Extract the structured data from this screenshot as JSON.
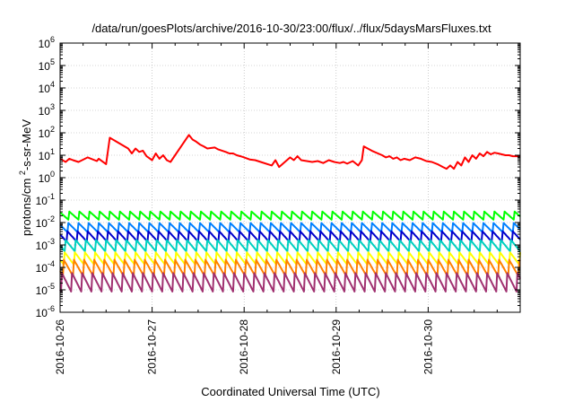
{
  "chart_data": {
    "type": "line",
    "title": "/data/run/goesPlots/archive/2016-10-30/23:00/flux/../flux/5daysMarsFluxes.txt",
    "xlabel": "Coordinated Universal Time (UTC)",
    "ylabel": "protons/cm2-s-sr-MeV",
    "yscale": "log",
    "ylim": [
      1e-06,
      1000000.0
    ],
    "xlim": [
      "2016-10-26",
      "2016-10-31"
    ],
    "grid": true,
    "legend": "none",
    "x_ticks": [
      "2016-10-26",
      "2016-10-27",
      "2016-10-28",
      "2016-10-29",
      "2016-10-30"
    ],
    "y_ticks": [
      {
        "base": "10",
        "exp": "6"
      },
      {
        "base": "10",
        "exp": "5"
      },
      {
        "base": "10",
        "exp": "4"
      },
      {
        "base": "10",
        "exp": "3"
      },
      {
        "base": "10",
        "exp": "2"
      },
      {
        "base": "10",
        "exp": "1"
      },
      {
        "base": "10",
        "exp": "0"
      },
      {
        "base": "10",
        "exp": "-1"
      },
      {
        "base": "10",
        "exp": "-2"
      },
      {
        "base": "10",
        "exp": "-3"
      },
      {
        "base": "10",
        "exp": "-4"
      },
      {
        "base": "10",
        "exp": "-5"
      },
      {
        "base": "10",
        "exp": "-6"
      }
    ],
    "series": [
      {
        "color": "#ff0000",
        "x": [
          0,
          0.06,
          0.1,
          0.14,
          0.2,
          0.3,
          0.4,
          0.42,
          0.5,
          0.54,
          0.74,
          0.78,
          0.82,
          0.86,
          0.9,
          0.94,
          1.0,
          1.04,
          1.08,
          1.12,
          1.16,
          1.2,
          1.4,
          1.44,
          1.48,
          1.52,
          1.56,
          1.6,
          1.68,
          1.72,
          1.76,
          1.8,
          1.84,
          1.88,
          1.92,
          1.96,
          2.0,
          2.06,
          2.12,
          2.18,
          2.3,
          2.34,
          2.38,
          2.5,
          2.54,
          2.58,
          2.62,
          2.68,
          2.74,
          2.8,
          2.86,
          2.92,
          2.98,
          3.04,
          3.08,
          3.12,
          3.18,
          3.24,
          3.28,
          3.3,
          3.4,
          3.5,
          3.54,
          3.58,
          3.62,
          3.66,
          3.7,
          3.74,
          3.8,
          3.86,
          3.92,
          3.98,
          4.04,
          4.1,
          4.16,
          4.2,
          4.24,
          4.28,
          4.32,
          4.36,
          4.4,
          4.44,
          4.48,
          4.52,
          4.56,
          4.6,
          4.64,
          4.68,
          4.72,
          4.76,
          4.8,
          4.84,
          4.88,
          4.92,
          4.96,
          5.0
        ],
        "y": [
          7,
          5,
          7,
          6,
          5,
          8,
          5.5,
          7,
          4,
          60,
          20,
          12,
          20,
          14,
          16,
          9,
          6,
          12,
          7,
          10,
          6,
          5,
          80,
          50,
          40,
          30,
          25,
          20,
          22,
          18,
          16,
          14,
          12,
          12,
          10,
          9,
          8,
          6.5,
          6,
          5,
          3.5,
          6,
          3,
          8,
          6,
          9,
          6,
          5.5,
          5,
          5.5,
          4.5,
          6,
          5,
          4.5,
          5,
          4.2,
          5.5,
          3.5,
          6,
          25,
          15,
          10,
          8,
          9,
          7,
          8,
          6,
          7,
          6,
          8,
          7,
          5.5,
          5,
          4,
          3,
          2.5,
          3.5,
          2.5,
          5,
          3.5,
          8,
          5,
          10,
          7,
          12,
          9,
          14,
          11,
          13,
          12,
          11,
          10,
          10,
          9,
          9,
          9
        ]
      },
      {
        "color": "#00ff00",
        "base": 0.02,
        "amp": 0.4
      },
      {
        "color": "#0080ff",
        "base": 0.006,
        "amp": 0.45
      },
      {
        "color": "#0000cc",
        "base": 0.0025,
        "amp": 0.5
      },
      {
        "color": "#00d0c0",
        "base": 0.0009,
        "amp": 0.55
      },
      {
        "color": "#ffff00",
        "base": 0.00025,
        "amp": 0.6
      },
      {
        "color": "#ff8000",
        "base": 0.0001,
        "amp": 0.8
      },
      {
        "color": "#a03070",
        "base": 2e-05,
        "amp": 0.9
      }
    ]
  }
}
